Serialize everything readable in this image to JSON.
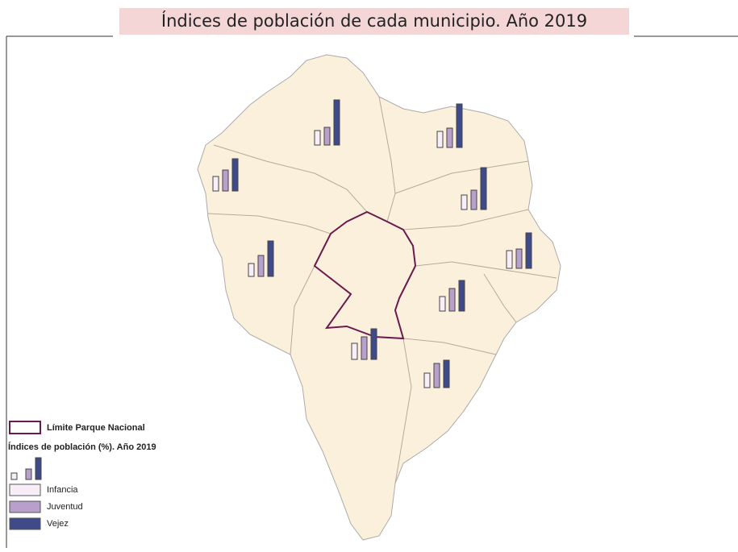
{
  "title": "Índices de población de cada municipio. Año 2019",
  "legend": {
    "park": "Límite Parque Nacional",
    "heading": "Índices de población  (%). Año 2019",
    "items": [
      {
        "label": "Infancia",
        "color": "#f7eef7"
      },
      {
        "label": "Juventud",
        "color": "#b9a0cc"
      },
      {
        "label": "Vejez",
        "color": "#3f4a8a"
      }
    ]
  },
  "municipalities": [
    {
      "values": [
        9,
        11,
        28
      ]
    },
    {
      "values": [
        10,
        12,
        27
      ]
    },
    {
      "values": [
        9,
        13,
        20
      ]
    },
    {
      "values": [
        9,
        12,
        26
      ]
    },
    {
      "values": [
        8,
        13,
        22
      ]
    },
    {
      "values": [
        11,
        12,
        22
      ]
    },
    {
      "values": [
        9,
        14,
        19
      ]
    },
    {
      "values": [
        10,
        14,
        19
      ]
    },
    {
      "values": [
        9,
        15,
        17
      ]
    }
  ]
}
